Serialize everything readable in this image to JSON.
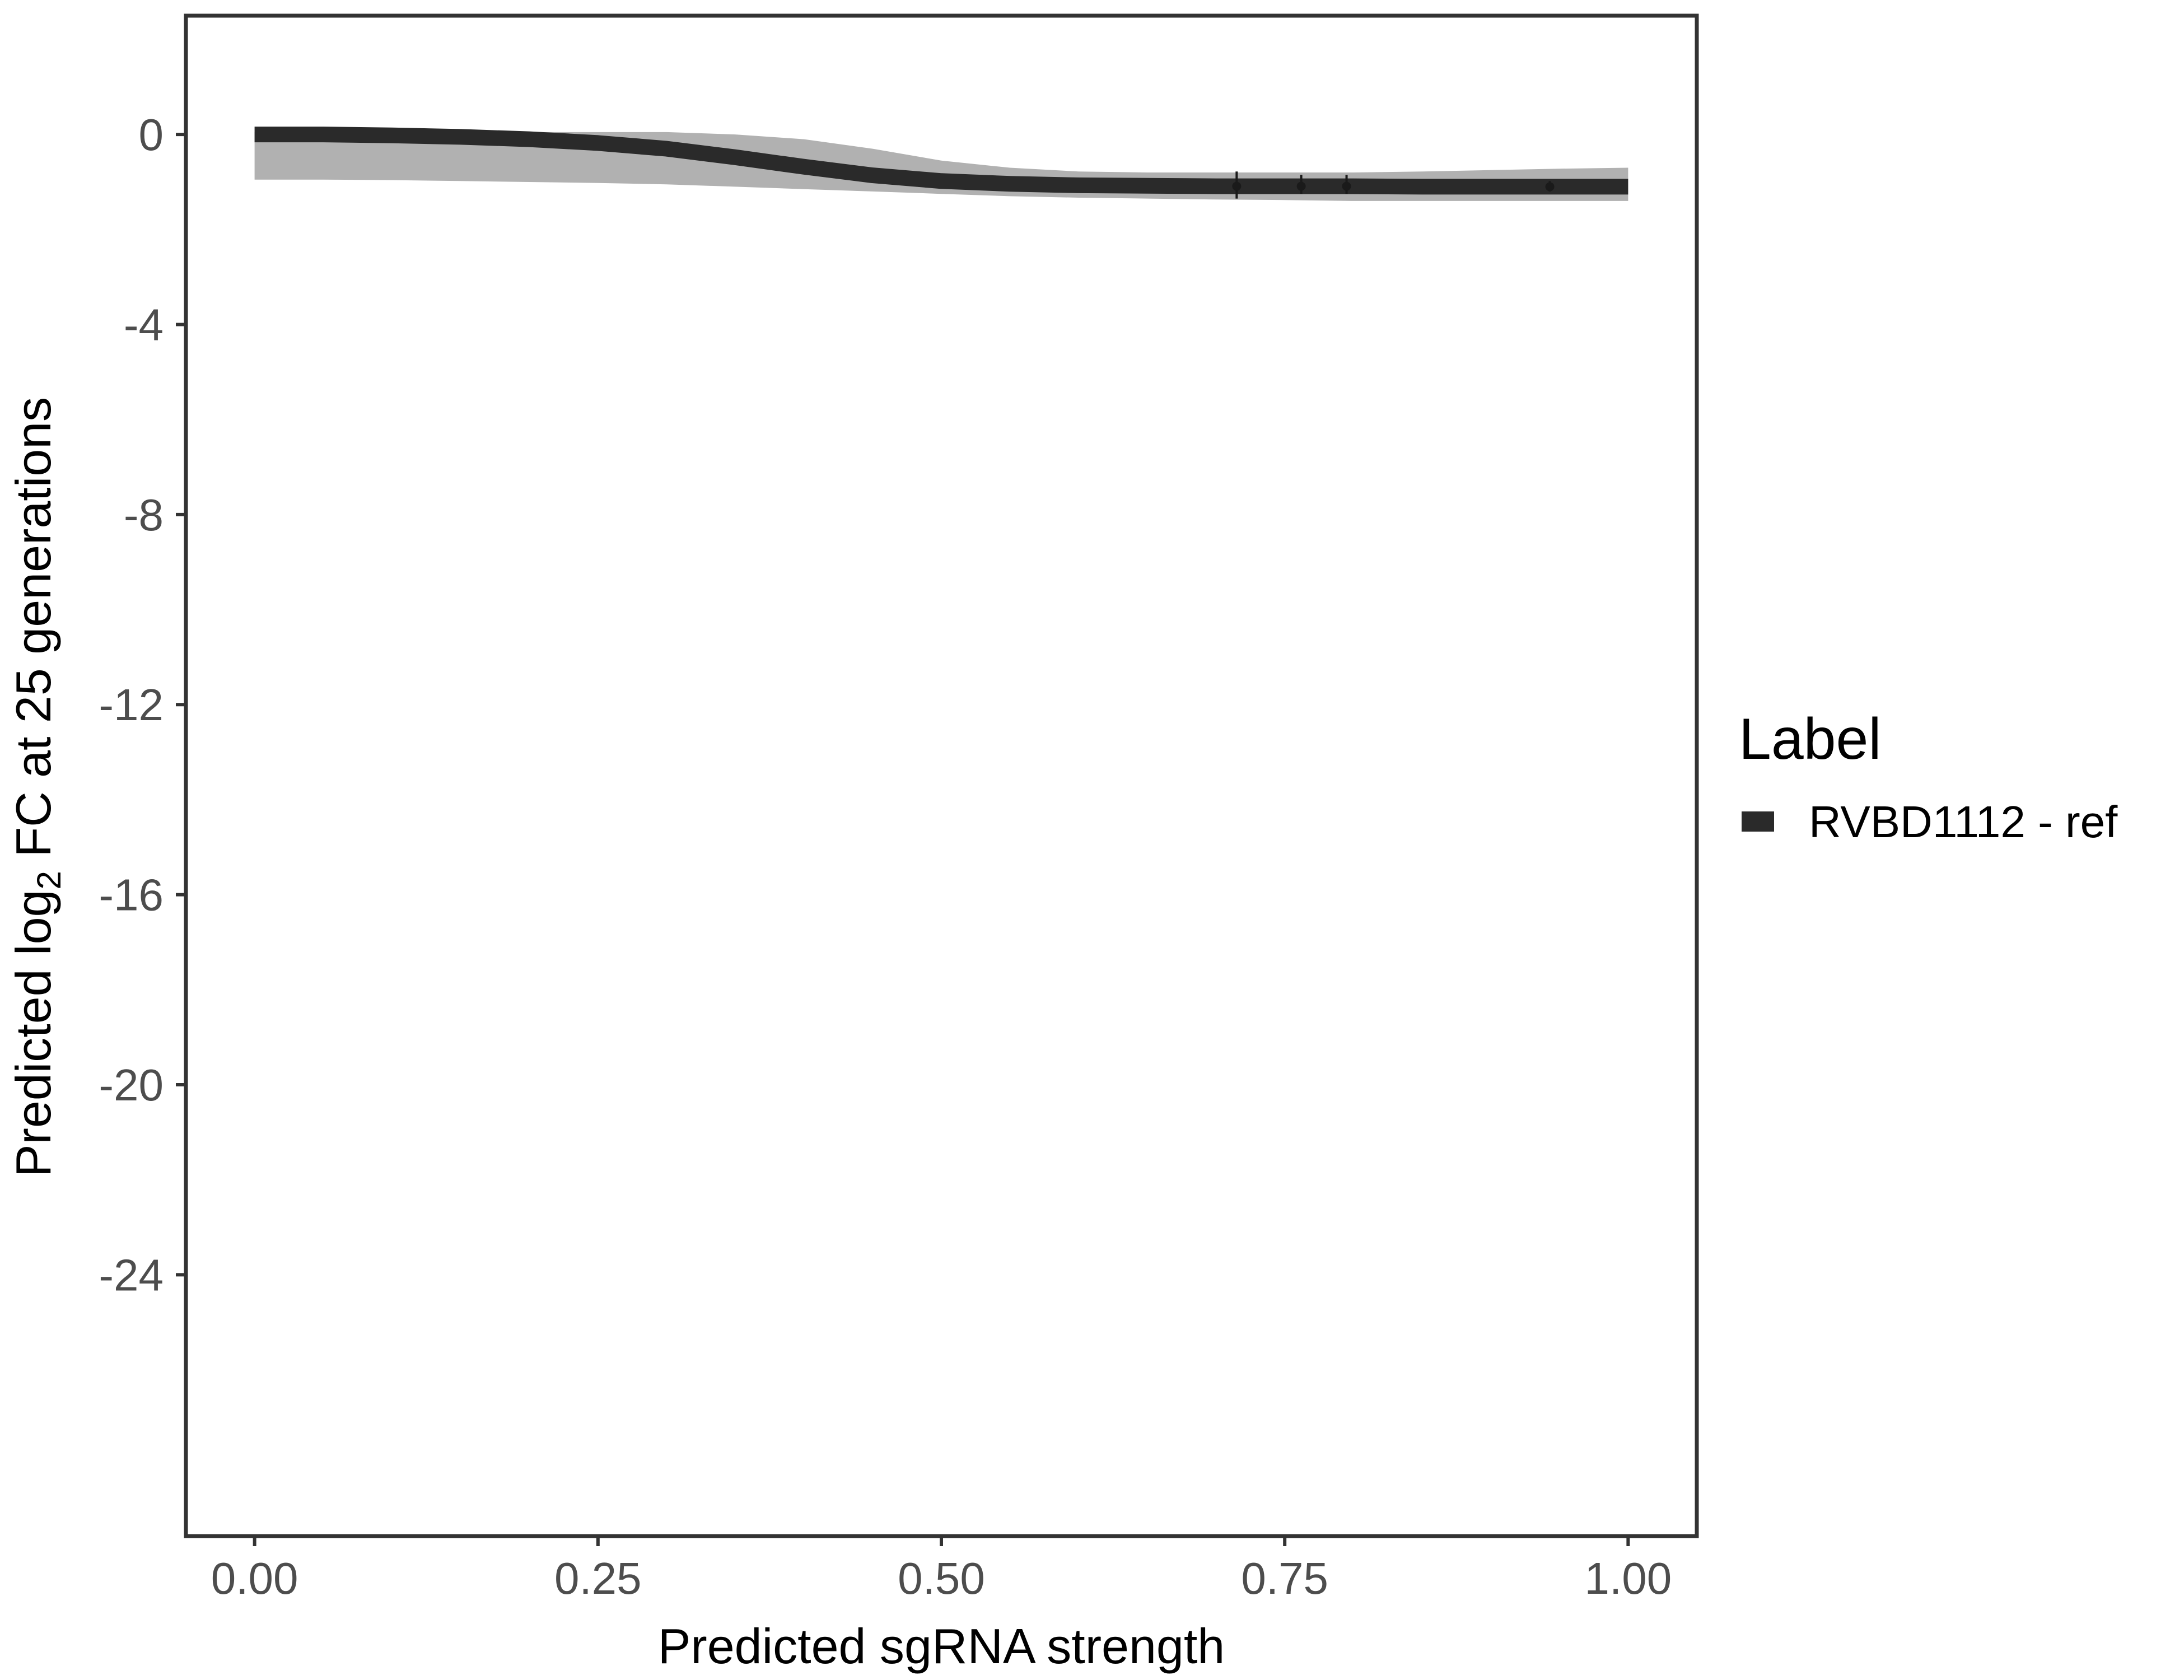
{
  "chart_data": {
    "type": "line",
    "title": "",
    "xlabel": "Predicted sgRNA strength",
    "ylabel": {
      "prefix": "Predicted  log",
      "subscript": "2",
      "suffix": " FC at 25 generations"
    },
    "xlim": [
      -0.05,
      1.05
    ],
    "ylim": [
      -29.5,
      2.5
    ],
    "x_ticks": [
      {
        "value": 0.0,
        "label": "0.00"
      },
      {
        "value": 0.25,
        "label": "0.25"
      },
      {
        "value": 0.5,
        "label": "0.50"
      },
      {
        "value": 0.75,
        "label": "0.75"
      },
      {
        "value": 1.0,
        "label": "1.00"
      }
    ],
    "y_ticks": [
      {
        "value": 0,
        "label": "0"
      },
      {
        "value": -4,
        "label": "-4"
      },
      {
        "value": -8,
        "label": "-8"
      },
      {
        "value": -12,
        "label": "-12"
      },
      {
        "value": -16,
        "label": "-16"
      },
      {
        "value": -20,
        "label": "-20"
      },
      {
        "value": -24,
        "label": "-24"
      }
    ],
    "grid": false,
    "legend": {
      "title": "Label",
      "position": "right",
      "entries": [
        {
          "label": "RVBD1112 - ref",
          "color": "#2a2a2a"
        }
      ]
    },
    "series": [
      {
        "name": "RVBD1112 - ref",
        "color": "#2a2a2a",
        "x": [
          0.0,
          0.05,
          0.1,
          0.15,
          0.2,
          0.25,
          0.3,
          0.35,
          0.4,
          0.45,
          0.5,
          0.55,
          0.6,
          0.65,
          0.7,
          0.75,
          0.8,
          0.85,
          0.9,
          0.95,
          1.0
        ],
        "y": [
          0.0,
          0.0,
          -0.02,
          -0.05,
          -0.1,
          -0.18,
          -0.3,
          -0.48,
          -0.68,
          -0.86,
          -0.98,
          -1.04,
          -1.07,
          -1.08,
          -1.09,
          -1.09,
          -1.09,
          -1.1,
          -1.1,
          -1.1,
          -1.1
        ]
      }
    ],
    "uncertainty_band": {
      "color": "#a8a8a8",
      "x": [
        0.0,
        0.05,
        0.1,
        0.15,
        0.2,
        0.25,
        0.3,
        0.35,
        0.4,
        0.45,
        0.5,
        0.55,
        0.6,
        0.65,
        0.7,
        0.75,
        0.8,
        0.85,
        0.9,
        0.95,
        1.0
      ],
      "lower": [
        -0.95,
        -0.95,
        -0.96,
        -0.98,
        -1.0,
        -1.02,
        -1.05,
        -1.1,
        -1.15,
        -1.2,
        -1.25,
        -1.3,
        -1.33,
        -1.35,
        -1.37,
        -1.38,
        -1.4,
        -1.4,
        -1.4,
        -1.4,
        -1.4
      ],
      "upper": [
        0.05,
        0.05,
        0.05,
        0.05,
        0.05,
        0.05,
        0.05,
        0.0,
        -0.1,
        -0.3,
        -0.55,
        -0.7,
        -0.78,
        -0.8,
        -0.8,
        -0.8,
        -0.8,
        -0.78,
        -0.75,
        -0.72,
        -0.7
      ]
    },
    "observed_guides": {
      "x": [
        0.715,
        0.762,
        0.795,
        0.943
      ],
      "y": [
        -1.09,
        -1.09,
        -1.09,
        -1.1
      ],
      "err_low": [
        -1.35,
        -1.25,
        -1.25,
        -1.2
      ],
      "err_high": [
        -0.78,
        -0.85,
        -0.85,
        -0.98
      ]
    }
  }
}
